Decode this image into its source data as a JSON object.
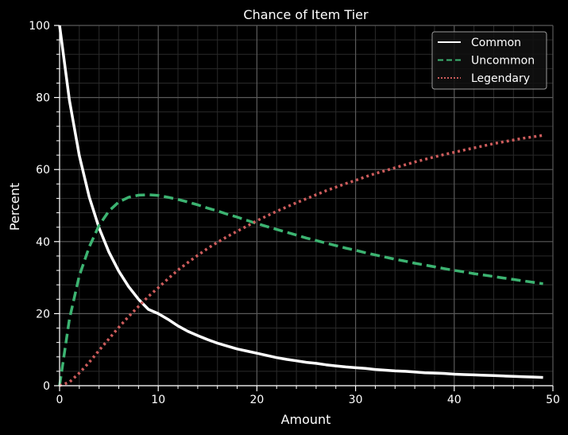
{
  "chart_data": {
    "type": "line",
    "title": "Chance of Item Tier",
    "xlabel": "Amount",
    "ylabel": "Percent",
    "xlim": [
      0,
      50
    ],
    "ylim": [
      0,
      100
    ],
    "xticks": [
      "0",
      "10",
      "20",
      "30",
      "40",
      "50"
    ],
    "yticks": [
      "0",
      "20",
      "40",
      "60",
      "80",
      "100"
    ],
    "grid": true,
    "minor_grid": true,
    "legend_position": "top-right",
    "x": [
      0,
      1,
      2,
      3,
      4,
      5,
      6,
      7,
      8,
      9,
      10,
      11,
      12,
      13,
      14,
      15,
      16,
      17,
      18,
      19,
      20,
      21,
      22,
      23,
      24,
      25,
      26,
      27,
      28,
      29,
      30,
      31,
      32,
      33,
      34,
      35,
      36,
      37,
      38,
      39,
      40,
      41,
      42,
      43,
      44,
      45,
      46,
      47,
      48,
      49
    ],
    "series": [
      {
        "name": "Common",
        "color": "#ffffff",
        "dash": "solid",
        "values": [
          100,
          79.2,
          63.9,
          52.4,
          43.8,
          37.1,
          31.8,
          27.5,
          24.0,
          21.2,
          20.0,
          18.4,
          16.6,
          15.1,
          13.9,
          12.8,
          11.8,
          11.0,
          10.2,
          9.6,
          9.0,
          8.4,
          7.8,
          7.3,
          6.9,
          6.5,
          6.2,
          5.8,
          5.5,
          5.2,
          5.0,
          4.8,
          4.5,
          4.3,
          4.1,
          4.0,
          3.8,
          3.6,
          3.5,
          3.4,
          3.2,
          3.1,
          3.0,
          2.9,
          2.8,
          2.7,
          2.6,
          2.5,
          2.4,
          2.3
        ]
      },
      {
        "name": "Uncommon",
        "color": "#3cb371",
        "dash": "dashed",
        "values": [
          0,
          18.5,
          30.5,
          38.5,
          44.5,
          48.5,
          51.0,
          52.3,
          52.9,
          53.0,
          52.8,
          52.3,
          51.7,
          51.0,
          50.2,
          49.3,
          48.5,
          47.6,
          46.8,
          45.9,
          45.0,
          44.2,
          43.4,
          42.6,
          41.8,
          41.0,
          40.3,
          39.6,
          38.9,
          38.2,
          37.6,
          36.9,
          36.3,
          35.7,
          35.1,
          34.6,
          34.0,
          33.5,
          33.0,
          32.5,
          32.0,
          31.6,
          31.1,
          30.7,
          30.3,
          29.9,
          29.5,
          29.1,
          28.7,
          28.3
        ]
      },
      {
        "name": "Legendary",
        "color": "#cd5c5c",
        "dash": "dotted",
        "values": [
          0,
          1.0,
          3.5,
          6.5,
          9.8,
          13.0,
          16.2,
          19.2,
          22.0,
          24.8,
          27.2,
          29.7,
          32.1,
          34.2,
          36.2,
          38.1,
          39.8,
          41.4,
          42.9,
          44.3,
          45.8,
          47.1,
          48.4,
          49.6,
          50.8,
          51.9,
          53.0,
          54.1,
          55.1,
          56.1,
          57.0,
          58.0,
          58.9,
          59.7,
          60.5,
          61.3,
          62.1,
          62.8,
          63.5,
          64.2,
          64.8,
          65.4,
          66.0,
          66.6,
          67.2,
          67.7,
          68.2,
          68.7,
          69.1,
          69.5
        ]
      }
    ]
  }
}
